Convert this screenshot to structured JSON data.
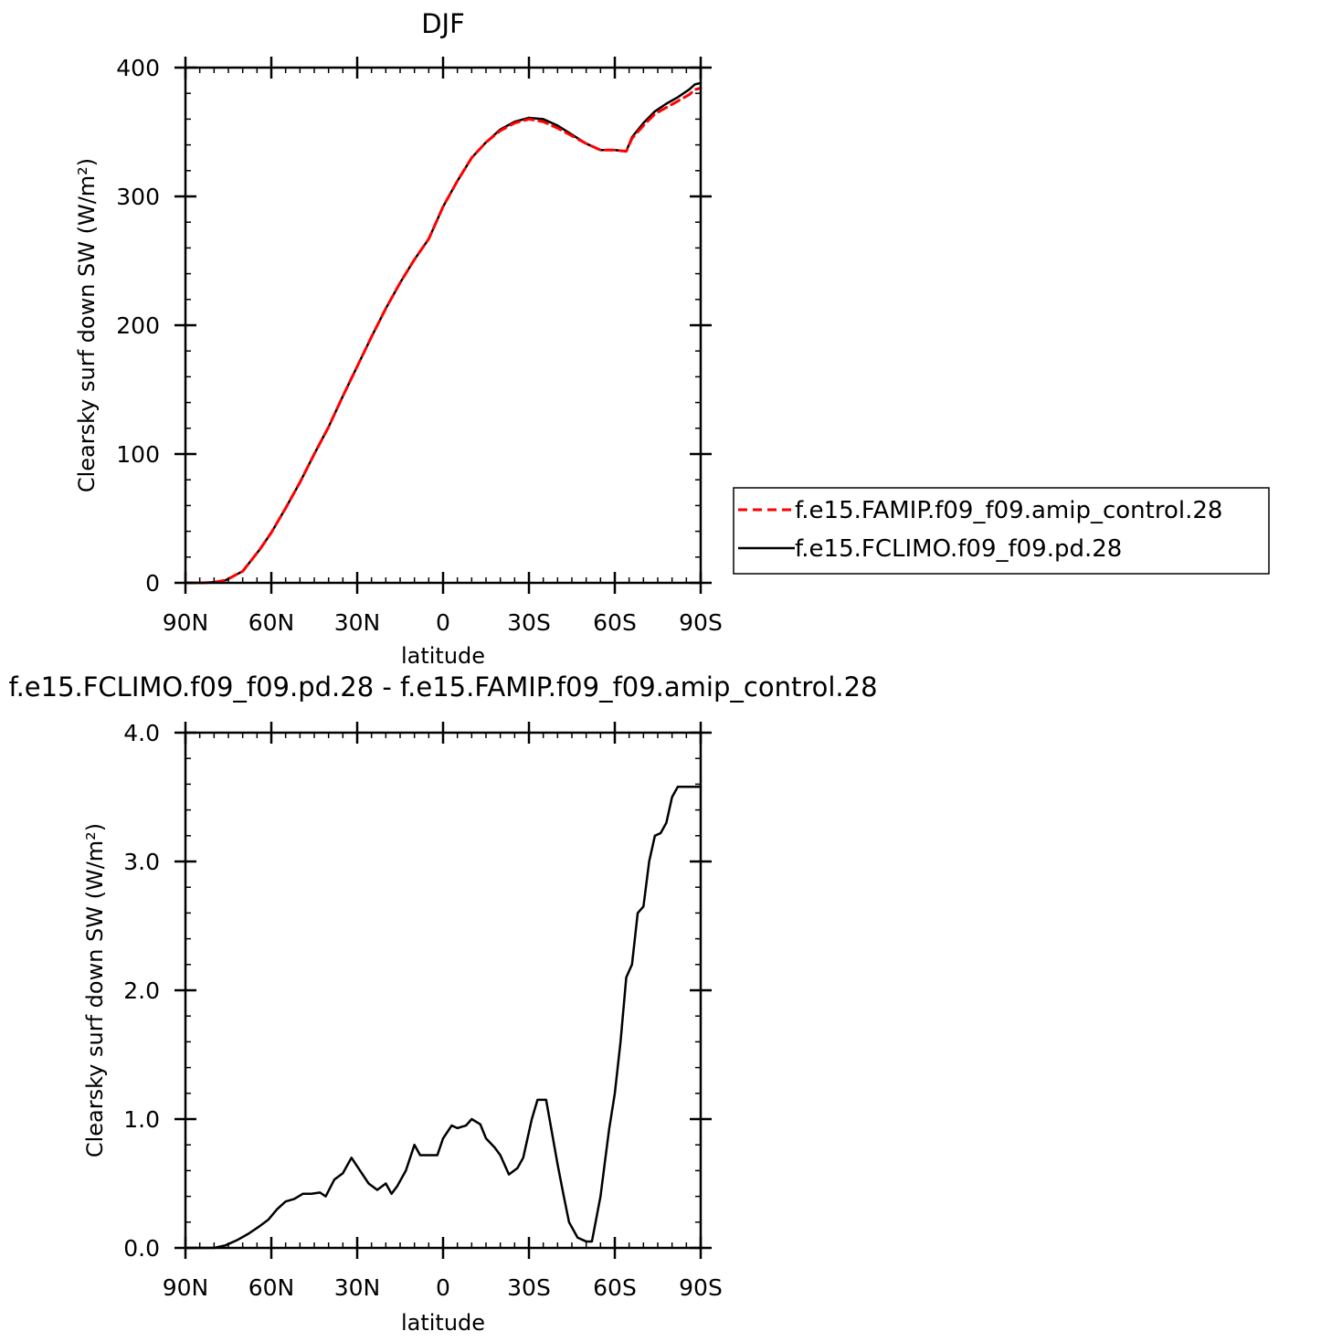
{
  "chart_data": [
    {
      "type": "line",
      "title": "DJF",
      "xlabel": "latitude",
      "ylabel": "Clearsky surf down SW (W/m²)",
      "xlim": [
        90,
        -90
      ],
      "ylim": [
        0,
        400
      ],
      "xticks": [
        {
          "value": 90,
          "label": "90N"
        },
        {
          "value": 60,
          "label": "60N"
        },
        {
          "value": 30,
          "label": "30N"
        },
        {
          "value": 0,
          "label": "0"
        },
        {
          "value": -30,
          "label": "30S"
        },
        {
          "value": -60,
          "label": "60S"
        },
        {
          "value": -90,
          "label": "90S"
        }
      ],
      "yticks": [
        {
          "value": 0,
          "label": "0"
        },
        {
          "value": 100,
          "label": "100"
        },
        {
          "value": 200,
          "label": "200"
        },
        {
          "value": 300,
          "label": "300"
        },
        {
          "value": 400,
          "label": "400"
        }
      ],
      "grid": false,
      "legend": {
        "placement": "right",
        "entries": [
          {
            "label": "f.e15.FAMIP.f09_f09.amip_control.28",
            "color": "#ff0000",
            "dash": "dashed"
          },
          {
            "label": "f.e15.FCLIMO.f09_f09.pd.28",
            "color": "#000000",
            "dash": "solid"
          }
        ]
      },
      "series": [
        {
          "name": "f.e15.FAMIP.f09_f09.amip_control.28",
          "color": "#ff0000",
          "dash": "dashed",
          "x": [
            90,
            84,
            80,
            76,
            70,
            64,
            60,
            55,
            50,
            45,
            40,
            35,
            30,
            25,
            20,
            15,
            10,
            5,
            0,
            -5,
            -10,
            -15,
            -20,
            -25,
            -30,
            -35,
            -40,
            -45,
            -50,
            -55,
            -60,
            -64,
            -66,
            -70,
            -74,
            -78,
            -82,
            -86,
            -88,
            -90
          ],
          "y": [
            0,
            0,
            0.5,
            2,
            9,
            26,
            39,
            58,
            78,
            100,
            121,
            145,
            168,
            191,
            213,
            233,
            251,
            267,
            292,
            312,
            330,
            342,
            351,
            357,
            360,
            358,
            353,
            347,
            341,
            336,
            336,
            335,
            345,
            355,
            364,
            369,
            374,
            379,
            383,
            384
          ]
        },
        {
          "name": "f.e15.FCLIMO.f09_f09.pd.28",
          "color": "#000000",
          "dash": "solid",
          "x": [
            90,
            84,
            80,
            76,
            70,
            64,
            60,
            55,
            50,
            45,
            40,
            35,
            30,
            25,
            20,
            15,
            10,
            5,
            0,
            -5,
            -10,
            -15,
            -20,
            -25,
            -30,
            -35,
            -40,
            -45,
            -50,
            -55,
            -60,
            -64,
            -66,
            -70,
            -74,
            -78,
            -82,
            -86,
            -88,
            -90
          ],
          "y": [
            0,
            0,
            0.5,
            2,
            9,
            26,
            39,
            58,
            78,
            100,
            121,
            145,
            168,
            191,
            213,
            233,
            251,
            267,
            292,
            312,
            330,
            342,
            352,
            358,
            361,
            360,
            355,
            348,
            341,
            336,
            336,
            335,
            346,
            357,
            366,
            372,
            377,
            383,
            387,
            388
          ]
        }
      ]
    },
    {
      "type": "line",
      "title": "f.e15.FCLIMO.f09_f09.pd.28 - f.e15.FAMIP.f09_f09.amip_control.28",
      "xlabel": "latitude",
      "ylabel": "Clearsky surf down SW (W/m²)",
      "xlim": [
        90,
        -90
      ],
      "ylim": [
        0,
        4
      ],
      "xticks": [
        {
          "value": 90,
          "label": "90N"
        },
        {
          "value": 60,
          "label": "60N"
        },
        {
          "value": 30,
          "label": "30N"
        },
        {
          "value": 0,
          "label": "0"
        },
        {
          "value": -30,
          "label": "30S"
        },
        {
          "value": -60,
          "label": "60S"
        },
        {
          "value": -90,
          "label": "90S"
        }
      ],
      "yticks": [
        {
          "value": 0,
          "label": "0.0"
        },
        {
          "value": 1,
          "label": "1.0"
        },
        {
          "value": 2,
          "label": "2.0"
        },
        {
          "value": 3,
          "label": "3.0"
        },
        {
          "value": 4,
          "label": "4.0"
        }
      ],
      "grid": false,
      "series": [
        {
          "color": "#000000",
          "dash": "solid",
          "x": [
            90,
            80,
            76,
            72,
            68,
            64,
            61,
            58,
            55,
            52,
            49,
            46,
            43,
            41,
            38,
            35,
            32,
            29,
            26,
            23,
            20,
            18,
            16,
            13,
            10,
            8,
            5,
            2,
            0,
            -3,
            -5,
            -8,
            -10,
            -13,
            -15,
            -18,
            -20,
            -23,
            -26,
            -28,
            -31,
            -33,
            -36,
            -38,
            -40,
            -42,
            -44,
            -47,
            -50,
            -52,
            -55,
            -58,
            -60,
            -62,
            -64,
            -66,
            -68,
            -70,
            -72,
            -74,
            -76,
            -78,
            -80,
            -82,
            -84,
            -86,
            -88,
            -90
          ],
          "y": [
            0,
            0,
            0.02,
            0.06,
            0.11,
            0.17,
            0.22,
            0.3,
            0.36,
            0.38,
            0.42,
            0.42,
            0.43,
            0.4,
            0.53,
            0.58,
            0.7,
            0.6,
            0.5,
            0.45,
            0.5,
            0.42,
            0.48,
            0.6,
            0.8,
            0.72,
            0.72,
            0.72,
            0.85,
            0.95,
            0.93,
            0.95,
            1.0,
            0.96,
            0.85,
            0.78,
            0.72,
            0.57,
            0.62,
            0.7,
            1.0,
            1.15,
            1.15,
            0.9,
            0.65,
            0.42,
            0.2,
            0.08,
            0.05,
            0.05,
            0.4,
            0.92,
            1.2,
            1.6,
            2.1,
            2.2,
            2.6,
            2.65,
            3.0,
            3.2,
            3.22,
            3.3,
            3.5,
            3.58,
            3.58,
            3.58,
            3.58,
            3.58
          ]
        }
      ]
    }
  ]
}
